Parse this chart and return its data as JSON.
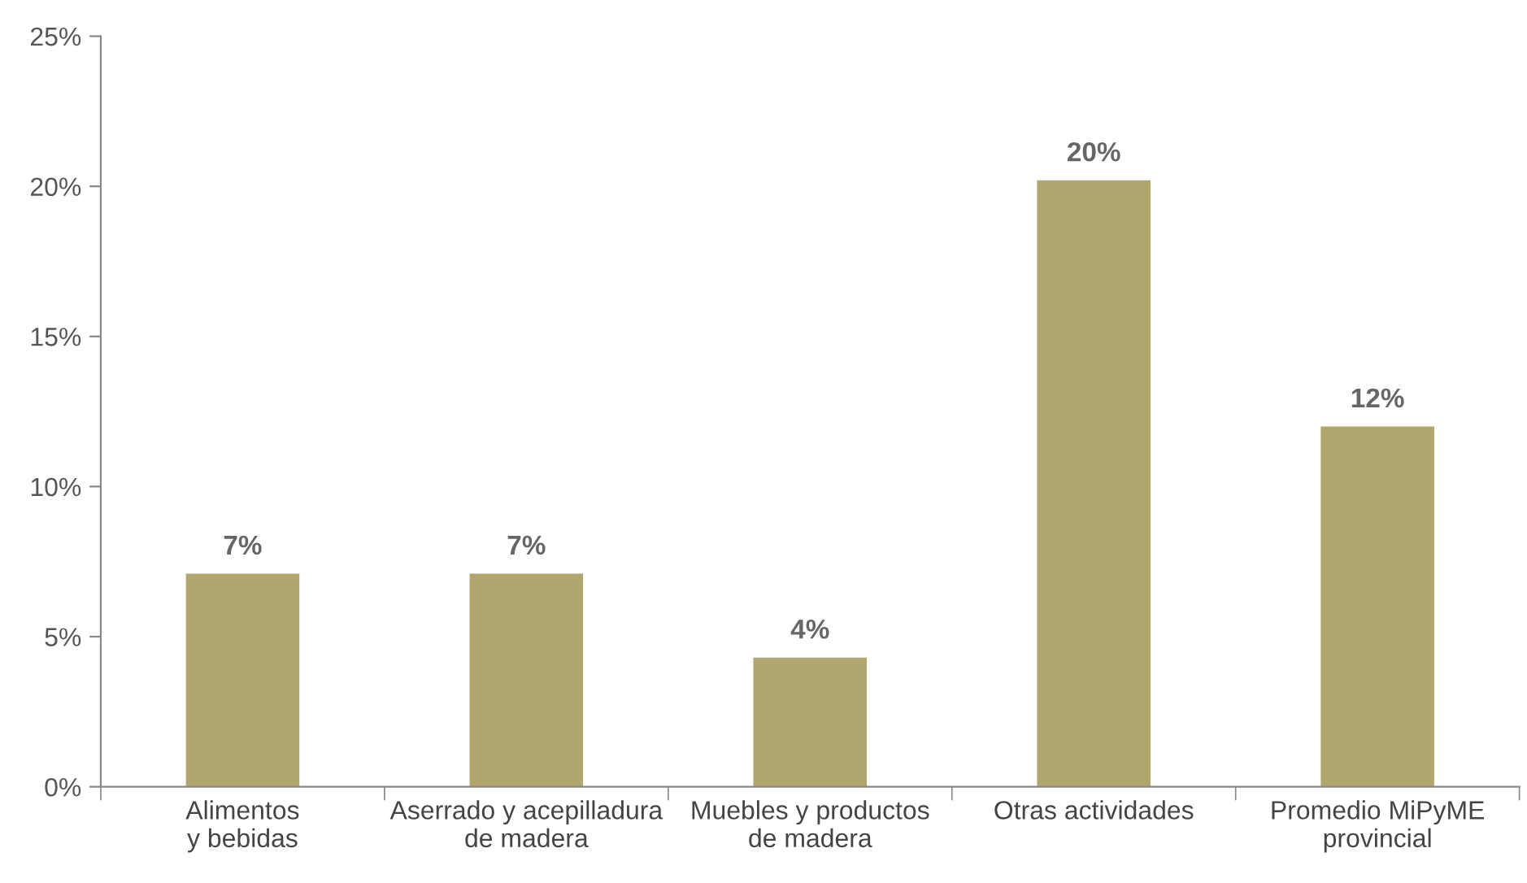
{
  "chart_data": {
    "type": "bar",
    "categories": [
      "Alimentos\ny bebidas",
      "Aserrado y acepilladura\nde madera",
      "Muebles y productos\nde madera",
      "Otras actividades",
      "Promedio MiPyME\nprovincial"
    ],
    "values": [
      7.1,
      7.1,
      4.3,
      20.2,
      12.0
    ],
    "value_labels": [
      "7%",
      "7%",
      "4%",
      "20%",
      "12%"
    ],
    "color": "#b1a76e",
    "ylim": [
      0,
      25
    ],
    "yticks": [
      {
        "value": 0,
        "label": "0%"
      },
      {
        "value": 5,
        "label": "5%"
      },
      {
        "value": 10,
        "label": "10%"
      },
      {
        "value": 15,
        "label": "15%"
      },
      {
        "value": 20,
        "label": "20%"
      },
      {
        "value": 25,
        "label": "25%"
      }
    ],
    "grid": false,
    "legend": false
  }
}
